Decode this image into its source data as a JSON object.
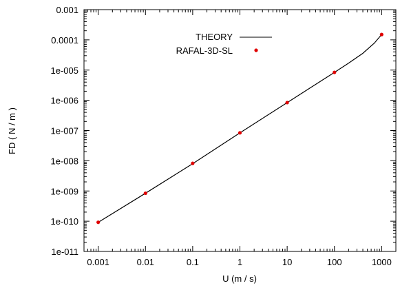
{
  "chart_data": {
    "type": "line",
    "xscale": "log",
    "yscale": "log",
    "xlim": [
      0.0005,
      2000
    ],
    "ylim": [
      1e-11,
      0.001
    ],
    "xlabel": "U (m / s)",
    "ylabel": "FD ( N / m )",
    "x_ticks": [
      0.001,
      0.01,
      0.1,
      1,
      10,
      100,
      1000
    ],
    "x_tick_labels": [
      "0.001",
      "0.01",
      "0.1",
      "1",
      "10",
      "100",
      "1000"
    ],
    "y_ticks": [
      1e-11,
      1e-10,
      1e-09,
      1e-08,
      1e-07,
      1e-06,
      1e-05,
      0.0001,
      0.001
    ],
    "y_tick_labels": [
      "1e-011",
      "1e-010",
      "1e-009",
      "1e-008",
      "1e-007",
      "1e-006",
      "1e-005",
      "0.0001",
      "0.001"
    ],
    "grid": false,
    "legend_position": "top-center",
    "series": [
      {
        "name": "THEORY",
        "style": "line",
        "color": "#000000",
        "x": [
          0.001,
          0.01,
          0.1,
          1,
          10,
          100,
          200,
          400,
          700,
          1000
        ],
        "y": [
          9.2e-11,
          8.4e-10,
          8e-09,
          8.4e-08,
          8.4e-07,
          8.4e-06,
          1.7e-05,
          3.6e-05,
          7.8e-05,
          0.00015
        ]
      },
      {
        "name": "RAFAL-3D-SL",
        "style": "points",
        "color": "#e00000",
        "x": [
          0.001,
          0.01,
          0.1,
          1,
          10,
          100,
          1000
        ],
        "y": [
          9.2e-11,
          8.4e-10,
          8.2e-09,
          8.4e-08,
          8.4e-07,
          8.4e-06,
          0.00015
        ]
      }
    ]
  }
}
